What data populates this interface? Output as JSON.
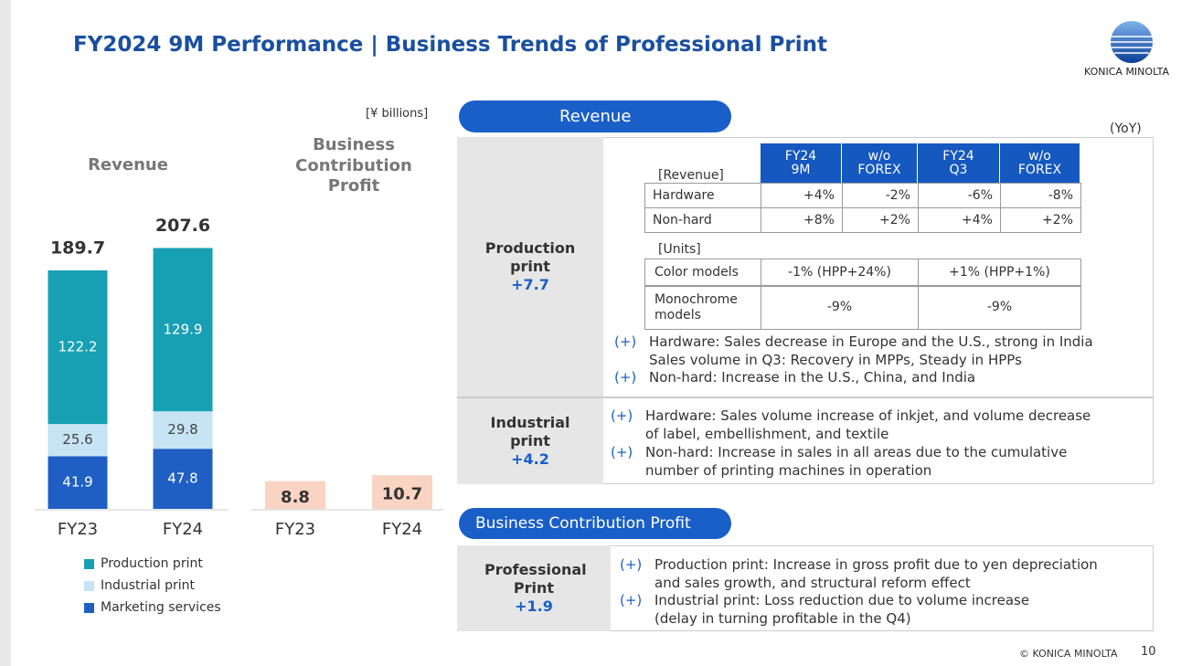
{
  "header": {
    "title": "FY2024 9M Performance | Business Trends of Professional Print",
    "logo": "KONICA MINOLTA"
  },
  "unit": "[¥ billions]",
  "chart_data": [
    {
      "type": "stacked_bar",
      "title": "Revenue",
      "categories": [
        "FY23",
        "FY24"
      ],
      "series": [
        {
          "name": "Marketing services",
          "color": "#1f5fc4",
          "values": [
            41.9,
            47.8
          ]
        },
        {
          "name": "Industrial print",
          "color": "#c6e4f4",
          "values": [
            25.6,
            29.8
          ]
        },
        {
          "name": "Production print",
          "color": "#17a0b4",
          "values": [
            122.2,
            129.9
          ]
        }
      ],
      "totals": [
        189.7,
        207.6
      ]
    },
    {
      "type": "bar",
      "title": "Business Contribution Profit",
      "categories": [
        "FY23",
        "FY24"
      ],
      "values": [
        8.8,
        10.7
      ],
      "color": "#fad4c2"
    }
  ],
  "revenue": {
    "heading": "Revenue",
    "yoy": "(YoY)",
    "production": {
      "name": "Production print",
      "change": "+7.7",
      "table": {
        "label": "[Revenue]",
        "columns": [
          "FY24 9M",
          "w/o FOREX",
          "FY24 Q3",
          "w/o FOREX"
        ],
        "rows": [
          [
            "Hardware",
            "+4%",
            "-2%",
            "-6%",
            "-8%"
          ],
          [
            "Non-hard",
            "+8%",
            "+2%",
            "+4%",
            "+2%"
          ]
        ]
      },
      "units": {
        "label": "[Units]",
        "rows": [
          [
            "Color models",
            "-1% (HPP+24%)",
            "+1% (HPP+1%)"
          ],
          [
            "Monochrome models",
            "-9%",
            "-9%"
          ]
        ]
      },
      "bullets": [
        {
          "marker": "(+)",
          "lines": [
            "Hardware: Sales decrease in Europe and the U.S., strong in India",
            "Sales volume in Q3: Recovery in MPPs, Steady in HPPs"
          ]
        },
        {
          "marker": "(+)",
          "lines": [
            "Non-hard: Increase in the U.S., China, and India"
          ]
        }
      ]
    },
    "industrial": {
      "name": "Industrial print",
      "change": "+4.2",
      "bullets": [
        {
          "marker": "(+)",
          "lines": [
            "Hardware: Sales volume increase of inkjet, and volume decrease",
            "of label, embellishment, and textile"
          ]
        },
        {
          "marker": "(+)",
          "lines": [
            "Non-hard: Increase in sales in all areas due to the cumulative",
            "number of printing machines in operation"
          ]
        }
      ]
    }
  },
  "profit": {
    "heading": "Business Contribution Profit",
    "segment": {
      "name": "Professional Print",
      "change": "+1.9",
      "bullets": [
        {
          "marker": "(+)",
          "lines": [
            "Production print: Increase in gross profit due to yen depreciation",
            "and sales growth, and structural reform effect"
          ]
        },
        {
          "marker": "(+)",
          "lines": [
            "Industrial print: Loss reduction due to volume increase",
            "(delay in turning profitable in the Q4)"
          ]
        }
      ]
    }
  },
  "footer": {
    "copyright": "© KONICA MINOLTA",
    "page": "10"
  }
}
